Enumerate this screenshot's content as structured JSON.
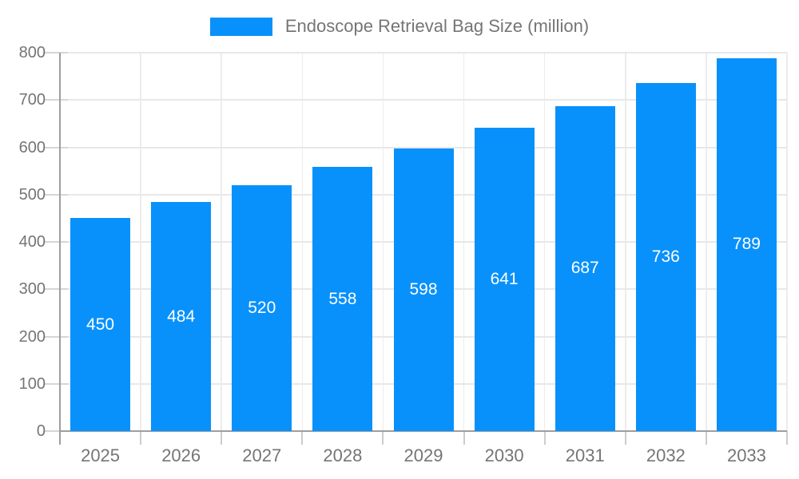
{
  "colors": {
    "bar": "#0991fb",
    "axis_line": "#9e9e9e",
    "grid_line": "#e8e8e8",
    "tick": "#cccccc",
    "label_text": "#757575",
    "value_label_text": "#ffffff",
    "background": "#ffffff"
  },
  "chart_data": {
    "type": "bar",
    "title": "",
    "legend": [
      "Endoscope Retrieval Bag Size (million)"
    ],
    "legend_position": "top",
    "categories": [
      "2025",
      "2026",
      "2027",
      "2028",
      "2029",
      "2030",
      "2031",
      "2032",
      "2033"
    ],
    "values": [
      450,
      484,
      520,
      558,
      598,
      641,
      687,
      736,
      789
    ],
    "xlabel": "",
    "ylabel": "",
    "ylim": [
      0,
      800
    ],
    "yticks": [
      0,
      100,
      200,
      300,
      400,
      500,
      600,
      700,
      800
    ],
    "grid": true,
    "value_labels": "inside-center"
  }
}
